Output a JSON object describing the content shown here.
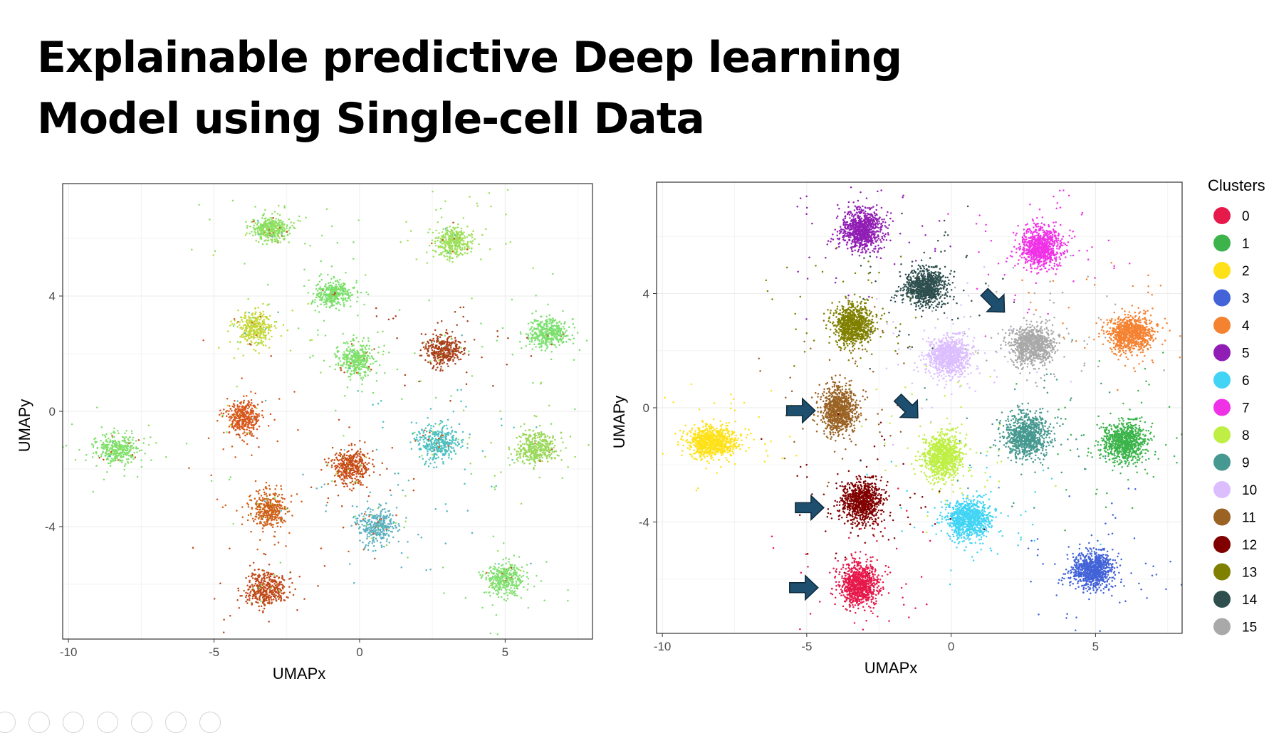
{
  "slide": {
    "title_line1": "Explainable predictive Deep learning",
    "title_line2": "Model using Single-cell Data"
  },
  "chart_data": [
    {
      "type": "scatter",
      "name": "left-umap",
      "title": "",
      "xlabel": "UMAPx",
      "ylabel": "UMAPy",
      "xlim": [
        -10.2,
        8.0
      ],
      "ylim": [
        -7.9,
        7.9
      ],
      "xticks": [
        -10,
        -5,
        0,
        5
      ],
      "yticks": [
        -4,
        0,
        4
      ],
      "grid": true,
      "legend": "none",
      "clusters": [
        {
          "x": -3.1,
          "y": 6.3,
          "color": "#8fe060",
          "n": 420,
          "sx": 0.6,
          "sy": 0.38
        },
        {
          "x": 3.2,
          "y": 5.9,
          "color": "#9ee05a",
          "n": 420,
          "sx": 0.55,
          "sy": 0.45
        },
        {
          "x": -0.9,
          "y": 4.1,
          "color": "#7be06c",
          "n": 380,
          "sx": 0.58,
          "sy": 0.38
        },
        {
          "x": -3.6,
          "y": 2.9,
          "color": "#c6d83a",
          "n": 360,
          "sx": 0.5,
          "sy": 0.52
        },
        {
          "x": -0.1,
          "y": 1.8,
          "color": "#7ee06a",
          "n": 400,
          "sx": 0.55,
          "sy": 0.5
        },
        {
          "x": 2.9,
          "y": 2.1,
          "color": "#a8401a",
          "n": 400,
          "sx": 0.55,
          "sy": 0.45
        },
        {
          "x": 6.5,
          "y": 2.7,
          "color": "#7be070",
          "n": 420,
          "sx": 0.6,
          "sy": 0.45
        },
        {
          "x": -4.0,
          "y": -0.2,
          "color": "#d8551a",
          "n": 380,
          "sx": 0.48,
          "sy": 0.55
        },
        {
          "x": -8.3,
          "y": -1.3,
          "color": "#80e06a",
          "n": 380,
          "sx": 0.65,
          "sy": 0.42
        },
        {
          "x": 2.7,
          "y": -1.1,
          "color": "#4ec0c0",
          "n": 400,
          "sx": 0.65,
          "sy": 0.55
        },
        {
          "x": 6.1,
          "y": -1.3,
          "color": "#9ad85a",
          "n": 400,
          "sx": 0.6,
          "sy": 0.5
        },
        {
          "x": -0.3,
          "y": -1.9,
          "color": "#c84a14",
          "n": 400,
          "sx": 0.55,
          "sy": 0.55
        },
        {
          "x": -3.1,
          "y": -3.4,
          "color": "#d06018",
          "n": 400,
          "sx": 0.55,
          "sy": 0.55
        },
        {
          "x": 0.6,
          "y": -4.0,
          "color": "#5cb0c0",
          "n": 380,
          "sx": 0.6,
          "sy": 0.55
        },
        {
          "x": -3.2,
          "y": -6.2,
          "color": "#c04818",
          "n": 420,
          "sx": 0.6,
          "sy": 0.55
        },
        {
          "x": 5.0,
          "y": -5.8,
          "color": "#80e070",
          "n": 400,
          "sx": 0.55,
          "sy": 0.5
        }
      ]
    },
    {
      "type": "scatter",
      "name": "right-umap",
      "title": "",
      "xlabel": "UMAPx",
      "ylabel": "UMAPy",
      "xlim": [
        -10.2,
        8.0
      ],
      "ylim": [
        -7.9,
        7.9
      ],
      "xticks": [
        -10,
        -5,
        0,
        5
      ],
      "yticks": [
        -4,
        0,
        4
      ],
      "grid": true,
      "legend": "right",
      "legend_title": "Clusters",
      "clusters": [
        {
          "label": "0",
          "color": "#e6194b",
          "x": -3.2,
          "y": -6.2,
          "n": 900,
          "sx": 0.6,
          "sy": 0.65
        },
        {
          "label": "1",
          "color": "#3cb44b",
          "x": 6.0,
          "y": -1.2,
          "n": 900,
          "sx": 0.7,
          "sy": 0.6
        },
        {
          "label": "2",
          "color": "#ffe119",
          "x": -8.3,
          "y": -1.2,
          "n": 900,
          "sx": 0.75,
          "sy": 0.45
        },
        {
          "label": "3",
          "color": "#4363d8",
          "x": 4.9,
          "y": -5.7,
          "n": 900,
          "sx": 0.65,
          "sy": 0.55
        },
        {
          "label": "4",
          "color": "#f58231",
          "x": 6.2,
          "y": 2.6,
          "n": 900,
          "sx": 0.7,
          "sy": 0.55
        },
        {
          "label": "5",
          "color": "#911eb4",
          "x": -3.1,
          "y": 6.2,
          "n": 900,
          "sx": 0.65,
          "sy": 0.6
        },
        {
          "label": "6",
          "color": "#42d4f4",
          "x": 0.6,
          "y": -3.9,
          "n": 900,
          "sx": 0.7,
          "sy": 0.6
        },
        {
          "label": "7",
          "color": "#f032e6",
          "x": 3.1,
          "y": 5.6,
          "n": 900,
          "sx": 0.65,
          "sy": 0.6
        },
        {
          "label": "8",
          "color": "#bfef45",
          "x": -0.3,
          "y": -1.7,
          "n": 900,
          "sx": 0.6,
          "sy": 0.7
        },
        {
          "label": "9",
          "color": "#469990",
          "x": 2.6,
          "y": -1.0,
          "n": 900,
          "sx": 0.7,
          "sy": 0.65
        },
        {
          "label": "10",
          "color": "#dcbeff",
          "x": -0.1,
          "y": 1.8,
          "n": 900,
          "sx": 0.65,
          "sy": 0.6
        },
        {
          "label": "11",
          "color": "#9a6324",
          "x": -3.9,
          "y": -0.1,
          "n": 900,
          "sx": 0.55,
          "sy": 0.7
        },
        {
          "label": "12",
          "color": "#800000",
          "x": -3.1,
          "y": -3.3,
          "n": 900,
          "sx": 0.65,
          "sy": 0.65
        },
        {
          "label": "13",
          "color": "#808000",
          "x": -3.4,
          "y": 2.9,
          "n": 900,
          "sx": 0.6,
          "sy": 0.6
        },
        {
          "label": "14",
          "color": "#2f4f4f",
          "x": -0.9,
          "y": 4.2,
          "n": 900,
          "sx": 0.65,
          "sy": 0.55
        },
        {
          "label": "15",
          "color": "#a9a9a9",
          "x": 2.8,
          "y": 2.2,
          "n": 900,
          "sx": 0.7,
          "sy": 0.6
        }
      ],
      "arrows": [
        {
          "x": -5.2,
          "y": -0.1,
          "dir": "right"
        },
        {
          "x": -4.9,
          "y": -3.5,
          "dir": "right"
        },
        {
          "x": -5.1,
          "y": -6.3,
          "dir": "right"
        },
        {
          "x": -1.5,
          "y": 0.0,
          "dir": "down-right"
        },
        {
          "x": 1.5,
          "y": 3.7,
          "dir": "down-right"
        }
      ]
    }
  ],
  "toolbar": {
    "icons": [
      "prev-slide-icon",
      "pen-icon",
      "slides-grid-icon",
      "zoom-icon",
      "subtitles-icon",
      "pointer-icon",
      "more-icon"
    ]
  }
}
